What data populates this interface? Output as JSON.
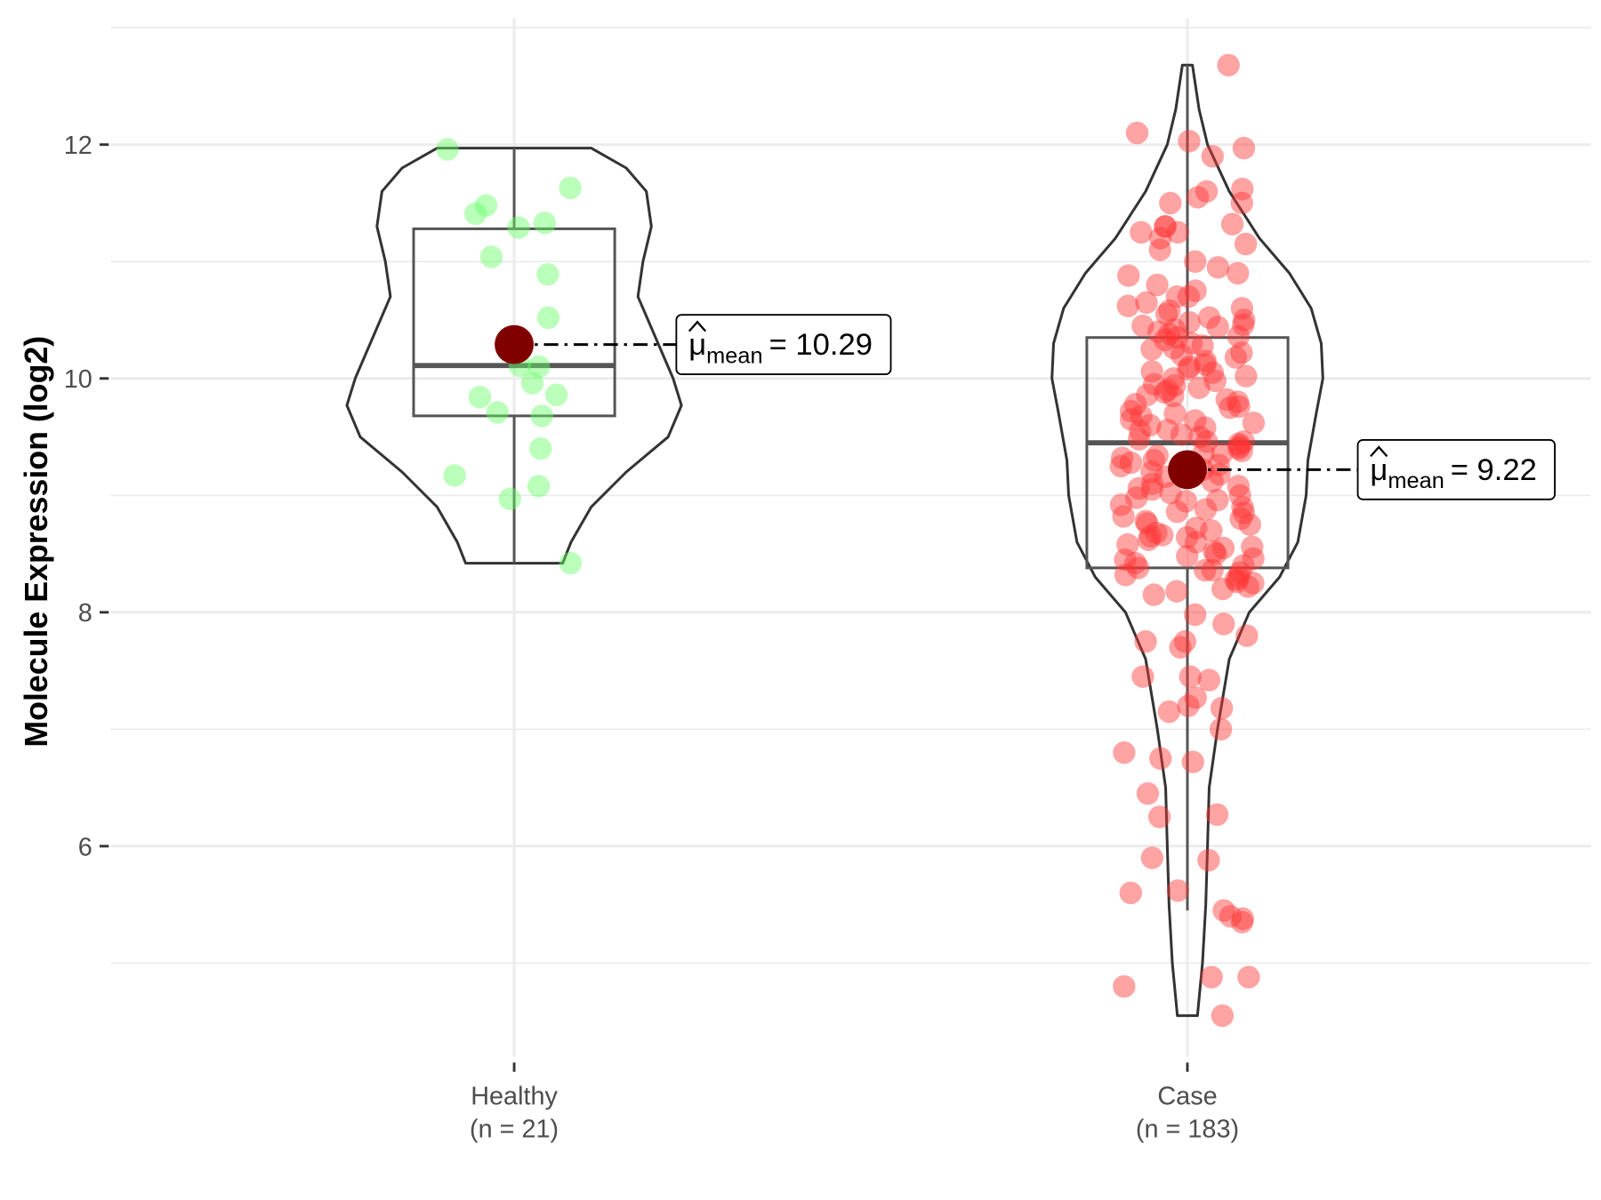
{
  "chart_data": {
    "type": "violin",
    "title": "",
    "xlabel": "",
    "ylabel": "Molecule Expression (log2)",
    "ylim": [
      4.2,
      13.1
    ],
    "yticks": [
      6,
      8,
      10,
      12
    ],
    "ytick_labels": [
      "6",
      "8",
      "10",
      "12"
    ],
    "grid": true,
    "legend": "none",
    "groups": [
      {
        "name": "Healthy",
        "n_label": "(n = 21)",
        "color": "#66ff66",
        "box": {
          "whisker_low": 8.42,
          "q1": 9.68,
          "median": 10.11,
          "q3": 11.28,
          "whisker_high": 11.97
        },
        "mean": 10.29,
        "mean_label": "= 10.29",
        "violin_profile": [
          [
            8.42,
            0.29
          ],
          [
            8.6,
            0.34
          ],
          [
            8.9,
            0.46
          ],
          [
            9.2,
            0.67
          ],
          [
            9.5,
            0.92
          ],
          [
            9.77,
            1.0
          ],
          [
            10.0,
            0.95
          ],
          [
            10.4,
            0.83
          ],
          [
            10.7,
            0.74
          ],
          [
            11.0,
            0.77
          ],
          [
            11.3,
            0.82
          ],
          [
            11.6,
            0.79
          ],
          [
            11.8,
            0.67
          ],
          [
            11.97,
            0.46
          ]
        ],
        "points": [
          11.96,
          11.63,
          11.48,
          11.41,
          11.33,
          11.29,
          11.04,
          10.89,
          10.52,
          10.11,
          10.1,
          9.96,
          9.86,
          9.84,
          9.71,
          9.68,
          9.4,
          9.17,
          9.08,
          8.97,
          8.42
        ]
      },
      {
        "name": "Case",
        "n_label": "(n = 183)",
        "color": "#ff3333",
        "box": {
          "whisker_low": 5.45,
          "q1": 8.38,
          "median": 9.45,
          "q3": 10.35,
          "whisker_high": 12.68
        },
        "mean": 9.22,
        "mean_label": "= 9.22",
        "violin_profile": [
          [
            4.55,
            0.06
          ],
          [
            4.7,
            0.07
          ],
          [
            5.0,
            0.09
          ],
          [
            5.5,
            0.11
          ],
          [
            6.0,
            0.12
          ],
          [
            6.5,
            0.13
          ],
          [
            7.0,
            0.18
          ],
          [
            7.6,
            0.25
          ],
          [
            8.0,
            0.37
          ],
          [
            8.3,
            0.55
          ],
          [
            8.6,
            0.66
          ],
          [
            9.0,
            0.71
          ],
          [
            9.3,
            0.72
          ],
          [
            9.7,
            0.77
          ],
          [
            10.0,
            0.81
          ],
          [
            10.3,
            0.8
          ],
          [
            10.6,
            0.74
          ],
          [
            10.9,
            0.61
          ],
          [
            11.2,
            0.43
          ],
          [
            11.6,
            0.25
          ],
          [
            12.0,
            0.12
          ],
          [
            12.3,
            0.07
          ],
          [
            12.68,
            0.03
          ]
        ],
        "points": [
          12.68,
          12.1,
          12.03,
          11.97,
          11.9,
          11.6,
          11.55,
          11.62,
          11.5,
          11.5,
          11.3,
          11.32,
          11.3,
          11.25,
          11.2,
          11.25,
          11.1,
          11.15,
          11.0,
          10.95,
          10.9,
          10.88,
          10.8,
          10.75,
          10.7,
          10.7,
          10.65,
          10.6,
          10.62,
          10.58,
          10.55,
          10.52,
          10.5,
          10.48,
          10.45,
          10.42,
          10.4,
          10.38,
          10.35,
          10.33,
          10.3,
          10.28,
          10.25,
          10.22,
          10.2,
          10.18,
          10.15,
          10.12,
          10.1,
          10.08,
          10.05,
          10.02,
          10.0,
          9.98,
          9.95,
          9.92,
          9.9,
          9.88,
          9.85,
          9.82,
          9.8,
          9.78,
          9.75,
          9.72,
          9.7,
          9.68,
          9.65,
          9.62,
          9.6,
          9.58,
          9.55,
          9.52,
          9.5,
          9.48,
          9.46,
          9.44,
          9.42,
          9.4,
          9.38,
          9.36,
          9.34,
          9.32,
          9.3,
          9.28,
          9.25,
          9.22,
          9.2,
          9.18,
          9.15,
          9.12,
          9.1,
          9.08,
          9.05,
          9.02,
          9.0,
          8.98,
          8.95,
          8.92,
          8.9,
          8.88,
          8.85,
          8.82,
          8.8,
          8.78,
          8.75,
          8.72,
          8.7,
          8.68,
          8.65,
          8.62,
          8.6,
          8.58,
          8.55,
          8.52,
          8.5,
          8.48,
          8.45,
          8.42,
          8.4,
          8.38,
          8.36,
          8.34,
          8.32,
          8.3,
          8.28,
          8.25,
          8.22,
          8.2,
          8.18,
          8.15,
          10.44,
          10.36,
          10.26,
          10.06,
          9.94,
          9.76,
          9.64,
          9.56,
          9.36,
          9.26,
          9.16,
          8.96,
          8.86,
          8.76,
          8.66,
          8.56,
          8.46,
          8.36,
          8.26,
          10.46,
          9.86,
          9.46,
          9.06,
          8.64,
          7.98,
          7.9,
          7.8,
          7.75,
          7.75,
          7.7,
          7.45,
          7.42,
          7.45,
          7.27,
          7.2,
          7.18,
          7.15,
          7.0,
          6.8,
          6.75,
          6.72,
          6.45,
          6.27,
          6.25,
          5.9,
          5.88,
          5.62,
          5.6,
          5.45,
          5.4,
          5.38,
          5.35,
          4.88,
          4.88,
          4.8,
          4.55
        ]
      }
    ],
    "mean_symbol": "μ",
    "mean_subscript": "mean",
    "mean_point_color": "#800000"
  }
}
